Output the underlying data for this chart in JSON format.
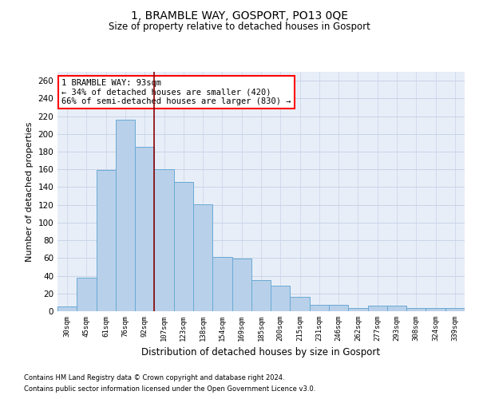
{
  "title1": "1, BRAMBLE WAY, GOSPORT, PO13 0QE",
  "title2": "Size of property relative to detached houses in Gosport",
  "xlabel": "Distribution of detached houses by size in Gosport",
  "ylabel": "Number of detached properties",
  "categories": [
    "30sqm",
    "45sqm",
    "61sqm",
    "76sqm",
    "92sqm",
    "107sqm",
    "123sqm",
    "138sqm",
    "154sqm",
    "169sqm",
    "185sqm",
    "200sqm",
    "215sqm",
    "231sqm",
    "246sqm",
    "262sqm",
    "277sqm",
    "293sqm",
    "308sqm",
    "324sqm",
    "339sqm"
  ],
  "values": [
    5,
    38,
    159,
    216,
    185,
    160,
    146,
    121,
    61,
    59,
    35,
    29,
    16,
    7,
    7,
    4,
    6,
    6,
    4,
    4,
    4
  ],
  "bar_color": "#b8d0ea",
  "bar_edge_color": "#6aaad4",
  "vline_x": 4.5,
  "annotation_text": "1 BRAMBLE WAY: 93sqm\n← 34% of detached houses are smaller (420)\n66% of semi-detached houses are larger (830) →",
  "annotation_box_color": "white",
  "annotation_box_edge_color": "red",
  "vline_color": "#8b0000",
  "grid_color": "#c8d4e8",
  "background_color": "#e8eef8",
  "ylim": [
    0,
    270
  ],
  "yticks": [
    0,
    20,
    40,
    60,
    80,
    100,
    120,
    140,
    160,
    180,
    200,
    220,
    240,
    260
  ],
  "footnote1": "Contains HM Land Registry data © Crown copyright and database right 2024.",
  "footnote2": "Contains public sector information licensed under the Open Government Licence v3.0."
}
